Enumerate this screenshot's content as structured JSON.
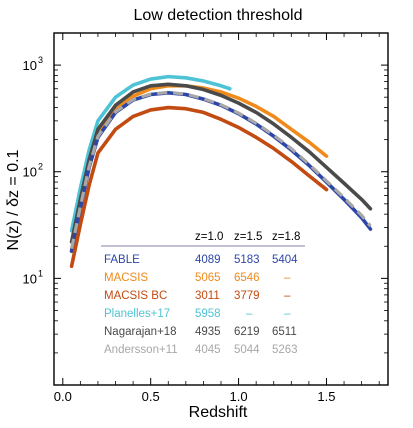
{
  "chart_data": {
    "type": "line",
    "title": "Low detection threshold",
    "xlabel": "Redshift",
    "ylabel": "N(z) / δz = 0.1",
    "xlim": [
      -0.05,
      1.85
    ],
    "ylim": [
      1,
      2000
    ],
    "y_scale": "log",
    "x_ticks": [
      {
        "value": 0.0,
        "label": "0.0"
      },
      {
        "value": 0.5,
        "label": "0.5"
      },
      {
        "value": 1.0,
        "label": "1.0"
      },
      {
        "value": 1.5,
        "label": "1.5"
      }
    ],
    "y_ticks": [
      {
        "value": 10,
        "label": "10",
        "exp": "1"
      },
      {
        "value": 100,
        "label": "10",
        "exp": "2"
      },
      {
        "value": 1000,
        "label": "10",
        "exp": "3"
      }
    ],
    "series": [
      {
        "name": "Planelles+17",
        "color": "#4fc3d6",
        "style": "solid",
        "x": [
          0.05,
          0.1,
          0.15,
          0.2,
          0.3,
          0.4,
          0.5,
          0.6,
          0.7,
          0.8,
          0.9,
          0.95
        ],
        "y": [
          28,
          70,
          160,
          300,
          500,
          650,
          740,
          780,
          760,
          710,
          640,
          600
        ]
      },
      {
        "name": "MACSIS",
        "color": "#ef8a1b",
        "style": "solid",
        "x": [
          0.05,
          0.1,
          0.15,
          0.2,
          0.3,
          0.4,
          0.5,
          0.6,
          0.7,
          0.8,
          0.9,
          1.0,
          1.1,
          1.2,
          1.3,
          1.4,
          1.5
        ],
        "y": [
          18,
          48,
          110,
          220,
          380,
          510,
          600,
          640,
          640,
          610,
          560,
          490,
          410,
          330,
          250,
          190,
          140
        ]
      },
      {
        "name": "Nagarajan+18",
        "color": "#4a4a4a",
        "style": "solid",
        "x": [
          0.05,
          0.1,
          0.15,
          0.2,
          0.3,
          0.4,
          0.5,
          0.6,
          0.7,
          0.8,
          0.9,
          1.0,
          1.1,
          1.2,
          1.3,
          1.4,
          1.5,
          1.6,
          1.7,
          1.75
        ],
        "y": [
          22,
          55,
          130,
          250,
          420,
          560,
          640,
          660,
          640,
          590,
          520,
          440,
          360,
          280,
          210,
          155,
          110,
          78,
          55,
          45
        ]
      },
      {
        "name": "FABLE",
        "color": "#2d47a8",
        "style": "solid",
        "x": [
          0.05,
          0.1,
          0.15,
          0.2,
          0.3,
          0.4,
          0.5,
          0.6,
          0.7,
          0.8,
          0.9,
          1.0,
          1.1,
          1.2,
          1.3,
          1.4,
          1.5,
          1.6,
          1.7,
          1.75
        ],
        "y": [
          18,
          45,
          110,
          210,
          360,
          470,
          530,
          550,
          530,
          480,
          420,
          350,
          280,
          215,
          160,
          115,
          80,
          55,
          37,
          29
        ]
      },
      {
        "name": "Andersson+11",
        "color": "#a8a8a8",
        "style": "dashed",
        "x": [
          0.05,
          0.1,
          0.15,
          0.2,
          0.3,
          0.4,
          0.5,
          0.6,
          0.7,
          0.8,
          0.9,
          1.0,
          1.1,
          1.2,
          1.3,
          1.4,
          1.5,
          1.6,
          1.7,
          1.75
        ],
        "y": [
          19,
          47,
          112,
          215,
          365,
          475,
          535,
          555,
          535,
          485,
          425,
          355,
          285,
          220,
          165,
          118,
          82,
          57,
          39,
          31
        ]
      },
      {
        "name": "MACSIS BC",
        "color": "#c24b12",
        "style": "solid",
        "x": [
          0.05,
          0.1,
          0.15,
          0.2,
          0.3,
          0.4,
          0.5,
          0.6,
          0.7,
          0.8,
          0.9,
          1.0,
          1.1,
          1.2,
          1.3,
          1.4,
          1.5
        ],
        "y": [
          13,
          32,
          75,
          150,
          250,
          330,
          380,
          400,
          390,
          360,
          310,
          260,
          210,
          165,
          125,
          92,
          68
        ]
      }
    ],
    "table": {
      "headers": [
        "",
        "z=1.0",
        "z=1.5",
        "z=1.8"
      ],
      "rows": [
        {
          "label": "FABLE",
          "color": "#2d47a8",
          "values": [
            "4089",
            "5183",
            "5404"
          ]
        },
        {
          "label": "MACSIS",
          "color": "#ef8a1b",
          "values": [
            "5065",
            "6546",
            "–"
          ]
        },
        {
          "label": "MACSIS BC",
          "color": "#c24b12",
          "values": [
            "3011",
            "3779",
            "–"
          ]
        },
        {
          "label": "Planelles+17",
          "color": "#4fc3d6",
          "values": [
            "5958",
            "–",
            "–"
          ]
        },
        {
          "label": "Nagarajan+18",
          "color": "#4a4a4a",
          "values": [
            "4935",
            "6219",
            "6511"
          ]
        },
        {
          "label": "Andersson+11",
          "color": "#a8a8a8",
          "values": [
            "4045",
            "5044",
            "5263"
          ]
        }
      ]
    }
  }
}
